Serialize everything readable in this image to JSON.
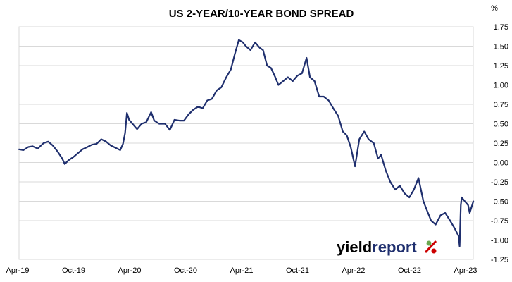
{
  "chart_data": {
    "type": "line",
    "title": "US 2-YEAR/10-YEAR BOND SPREAD",
    "ylabel": "%",
    "xlabel": "",
    "ylim": [
      -1.25,
      1.75
    ],
    "y_ticks": [
      "1.75",
      "1.50",
      "1.25",
      "1.00",
      "0.75",
      "0.50",
      "0.25",
      "0.00",
      "-0.25",
      "-0.50",
      "-0.75",
      "-1.00",
      "-1.25"
    ],
    "x_ticks": [
      "Apr-19",
      "Oct-19",
      "Apr-20",
      "Oct-20",
      "Apr-21",
      "Oct-21",
      "Apr-22",
      "Oct-22",
      "Apr-23"
    ],
    "x_range": [
      "2019-04-01",
      "2023-04-01"
    ],
    "y_axis_position": "right",
    "grid": "horizontal",
    "legend": "none",
    "series": [
      {
        "color": "#1f2f6e",
        "points": [
          [
            "2019-04-01",
            0.17
          ],
          [
            "2019-04-15",
            0.16
          ],
          [
            "2019-05-01",
            0.2
          ],
          [
            "2019-05-15",
            0.21
          ],
          [
            "2019-06-01",
            0.18
          ],
          [
            "2019-06-20",
            0.25
          ],
          [
            "2019-07-05",
            0.27
          ],
          [
            "2019-07-20",
            0.22
          ],
          [
            "2019-08-05",
            0.14
          ],
          [
            "2019-08-20",
            0.05
          ],
          [
            "2019-08-28",
            -0.02
          ],
          [
            "2019-09-10",
            0.03
          ],
          [
            "2019-09-25",
            0.07
          ],
          [
            "2019-10-10",
            0.12
          ],
          [
            "2019-10-25",
            0.17
          ],
          [
            "2019-11-10",
            0.2
          ],
          [
            "2019-11-25",
            0.23
          ],
          [
            "2019-12-10",
            0.24
          ],
          [
            "2019-12-25",
            0.3
          ],
          [
            "2020-01-10",
            0.27
          ],
          [
            "2020-01-25",
            0.22
          ],
          [
            "2020-02-10",
            0.19
          ],
          [
            "2020-02-25",
            0.16
          ],
          [
            "2020-03-05",
            0.24
          ],
          [
            "2020-03-12",
            0.38
          ],
          [
            "2020-03-18",
            0.64
          ],
          [
            "2020-03-25",
            0.55
          ],
          [
            "2020-04-05",
            0.5
          ],
          [
            "2020-04-20",
            0.43
          ],
          [
            "2020-05-05",
            0.5
          ],
          [
            "2020-05-20",
            0.52
          ],
          [
            "2020-06-05",
            0.65
          ],
          [
            "2020-06-15",
            0.54
          ],
          [
            "2020-07-01",
            0.5
          ],
          [
            "2020-07-20",
            0.5
          ],
          [
            "2020-08-05",
            0.42
          ],
          [
            "2020-08-20",
            0.55
          ],
          [
            "2020-09-05",
            0.54
          ],
          [
            "2020-09-20",
            0.54
          ],
          [
            "2020-10-05",
            0.62
          ],
          [
            "2020-10-20",
            0.68
          ],
          [
            "2020-11-05",
            0.72
          ],
          [
            "2020-11-20",
            0.7
          ],
          [
            "2020-12-05",
            0.8
          ],
          [
            "2020-12-20",
            0.82
          ],
          [
            "2021-01-05",
            0.93
          ],
          [
            "2021-01-20",
            0.97
          ],
          [
            "2021-02-05",
            1.1
          ],
          [
            "2021-02-20",
            1.2
          ],
          [
            "2021-03-05",
            1.4
          ],
          [
            "2021-03-18",
            1.58
          ],
          [
            "2021-03-31",
            1.55
          ],
          [
            "2021-04-10",
            1.5
          ],
          [
            "2021-04-25",
            1.45
          ],
          [
            "2021-05-10",
            1.55
          ],
          [
            "2021-05-25",
            1.48
          ],
          [
            "2021-06-05",
            1.45
          ],
          [
            "2021-06-18",
            1.25
          ],
          [
            "2021-07-01",
            1.22
          ],
          [
            "2021-07-15",
            1.1
          ],
          [
            "2021-07-25",
            1.0
          ],
          [
            "2021-08-10",
            1.05
          ],
          [
            "2021-08-25",
            1.1
          ],
          [
            "2021-09-10",
            1.05
          ],
          [
            "2021-09-25",
            1.12
          ],
          [
            "2021-10-10",
            1.15
          ],
          [
            "2021-10-25",
            1.35
          ],
          [
            "2021-11-05",
            1.1
          ],
          [
            "2021-11-20",
            1.05
          ],
          [
            "2021-12-05",
            0.85
          ],
          [
            "2021-12-20",
            0.85
          ],
          [
            "2022-01-05",
            0.8
          ],
          [
            "2022-01-20",
            0.7
          ],
          [
            "2022-02-05",
            0.6
          ],
          [
            "2022-02-20",
            0.4
          ],
          [
            "2022-03-05",
            0.35
          ],
          [
            "2022-03-18",
            0.2
          ],
          [
            "2022-04-01",
            -0.05
          ],
          [
            "2022-04-15",
            0.3
          ],
          [
            "2022-05-01",
            0.4
          ],
          [
            "2022-05-15",
            0.3
          ],
          [
            "2022-06-01",
            0.25
          ],
          [
            "2022-06-15",
            0.05
          ],
          [
            "2022-06-25",
            0.1
          ],
          [
            "2022-07-10",
            -0.1
          ],
          [
            "2022-07-25",
            -0.25
          ],
          [
            "2022-08-10",
            -0.35
          ],
          [
            "2022-08-25",
            -0.3
          ],
          [
            "2022-09-10",
            -0.4
          ],
          [
            "2022-09-25",
            -0.45
          ],
          [
            "2022-10-10",
            -0.35
          ],
          [
            "2022-10-25",
            -0.2
          ],
          [
            "2022-11-10",
            -0.5
          ],
          [
            "2022-11-20",
            -0.6
          ],
          [
            "2022-12-05",
            -0.75
          ],
          [
            "2022-12-20",
            -0.8
          ],
          [
            "2023-01-05",
            -0.68
          ],
          [
            "2023-01-20",
            -0.65
          ],
          [
            "2023-02-05",
            -0.75
          ],
          [
            "2023-02-20",
            -0.85
          ],
          [
            "2023-03-05",
            -0.95
          ],
          [
            "2023-03-08",
            -1.08
          ],
          [
            "2023-03-12",
            -0.55
          ],
          [
            "2023-03-15",
            -0.45
          ],
          [
            "2023-03-25",
            -0.5
          ],
          [
            "2023-04-05",
            -0.55
          ],
          [
            "2023-04-10",
            -0.65
          ],
          [
            "2023-04-18",
            -0.55
          ],
          [
            "2023-04-22",
            -0.5
          ]
        ]
      }
    ]
  },
  "logo": {
    "text_main": "yield",
    "text_accent": "report",
    "symbol": "%",
    "colors": {
      "main": "#000000",
      "accent": "#1f2f6e",
      "symbol_top": "#6aa84f",
      "symbol_bottom": "#cc0000"
    }
  },
  "colors": {
    "series": "#1f2f6e",
    "grid": "#d9d9d9",
    "background": "#ffffff"
  }
}
